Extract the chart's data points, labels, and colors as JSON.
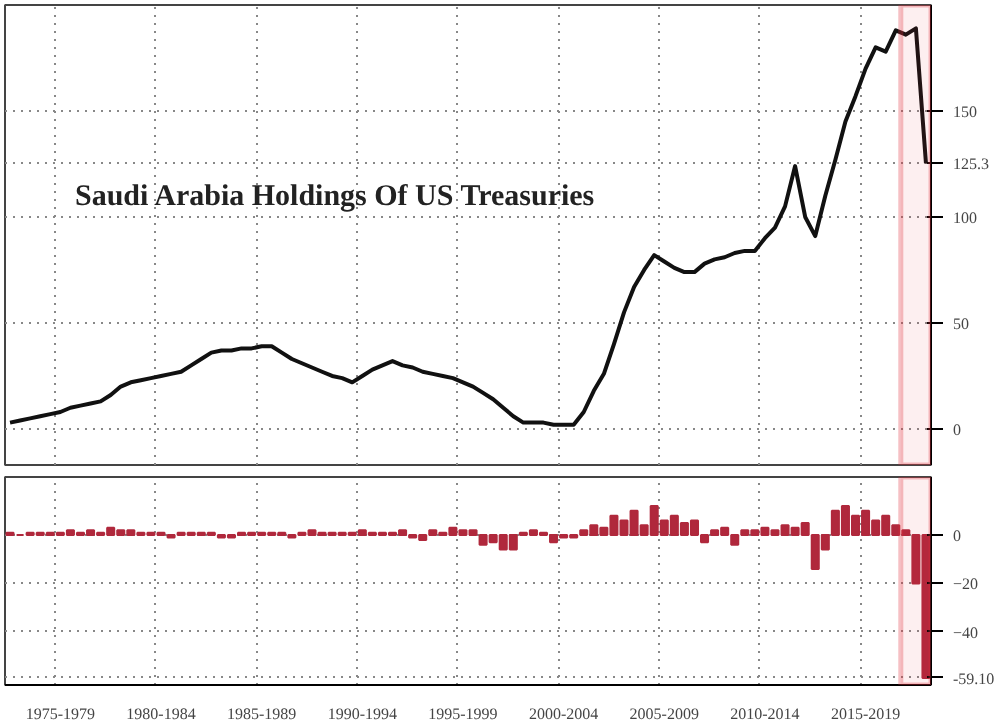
{
  "chart_data": [
    {
      "type": "line",
      "title": "Saudi Arabia Holdings Of US Treasuries",
      "categories": [
        null,
        null,
        null,
        null,
        null,
        null,
        null,
        null,
        null,
        null,
        null,
        null,
        null,
        null,
        null,
        null,
        null,
        null,
        null,
        null,
        null,
        null,
        null,
        null,
        null,
        null,
        null,
        null,
        null,
        null,
        null,
        null,
        null,
        null,
        null,
        null,
        null,
        null,
        null,
        null,
        null,
        null,
        null,
        null,
        null,
        null,
        null,
        null,
        null,
        null,
        null,
        null,
        null,
        null,
        null,
        null,
        null,
        null,
        null,
        null,
        null,
        null,
        null,
        null,
        null,
        null,
        null,
        null,
        null,
        null,
        null,
        null,
        null,
        null,
        null,
        null,
        null,
        null,
        null,
        null,
        null,
        null,
        null,
        null,
        null,
        null,
        null,
        null,
        null,
        null,
        null,
        null
      ],
      "series": [
        {
          "color": "#111111",
          "values": [
            3,
            4,
            5,
            6,
            7,
            8,
            10,
            11,
            12,
            13,
            16,
            20,
            22,
            23,
            24,
            25,
            26,
            27,
            30,
            33,
            36,
            37,
            37,
            38,
            38,
            39,
            39,
            36,
            33,
            31,
            29,
            27,
            25,
            24,
            22,
            25,
            28,
            30,
            32,
            30,
            29,
            27,
            26,
            25,
            24,
            22,
            20,
            17,
            14,
            10,
            6,
            3,
            3,
            3,
            2,
            2,
            2,
            8,
            18,
            26,
            40,
            55,
            67,
            75,
            82,
            79,
            76,
            74,
            74,
            78,
            80,
            81,
            83,
            84,
            84,
            90,
            95,
            105,
            124,
            100,
            91,
            110,
            127,
            145,
            157,
            170,
            180,
            178,
            188,
            186,
            189,
            125.3
          ]
        }
      ],
      "ylim": [
        -17,
        200
      ],
      "yticks": [
        0,
        50,
        100,
        125.3,
        150
      ],
      "tick_labels": "y",
      "grid": true,
      "line_style": "solid"
    },
    {
      "type": "bar",
      "categories": [
        null,
        null,
        null,
        null,
        null,
        "1975-1979",
        null,
        null,
        null,
        null,
        null,
        null,
        null,
        null,
        null,
        "1980-1984",
        null,
        null,
        null,
        null,
        null,
        null,
        null,
        null,
        null,
        "1985-1989",
        null,
        null,
        null,
        null,
        null,
        null,
        null,
        null,
        null,
        "1990-1994",
        null,
        null,
        null,
        null,
        null,
        null,
        null,
        null,
        null,
        "1995-1999",
        null,
        null,
        null,
        null,
        null,
        null,
        null,
        null,
        null,
        "2000-2004",
        null,
        null,
        null,
        null,
        null,
        null,
        null,
        null,
        null,
        "2005-2009",
        null,
        null,
        null,
        null,
        null,
        null,
        null,
        null,
        null,
        "2010-2014",
        null,
        null,
        null,
        null,
        null,
        null,
        null,
        null,
        null,
        "2015-2019",
        null,
        null,
        null,
        null,
        null,
        null
      ],
      "series": [
        {
          "color": "#b0283c",
          "values": [
            1,
            0,
            1,
            1,
            1,
            1,
            2,
            1,
            2,
            1,
            3,
            2,
            2,
            1,
            1,
            1,
            -1,
            1,
            1,
            1,
            1,
            -1,
            -1,
            1,
            1,
            1,
            1,
            1,
            -1,
            1,
            2,
            1,
            1,
            1,
            1,
            2,
            1,
            1,
            1,
            2,
            -1,
            -2,
            2,
            1,
            3,
            2,
            2,
            -4,
            -3,
            -6,
            -6,
            1,
            2,
            1,
            -3,
            -1,
            -1,
            2,
            4,
            3,
            8,
            6,
            10,
            4,
            12,
            6,
            8,
            5,
            6,
            -3,
            2,
            3,
            -4,
            2,
            2,
            3,
            2,
            4,
            3,
            5,
            -14,
            -6,
            10,
            12,
            8,
            10,
            6,
            8,
            4,
            2,
            -20,
            -59.1
          ]
        }
      ],
      "ylim": [
        -62,
        24
      ],
      "yticks": [
        {
          "value": -59.1,
          "label": "-59.10"
        },
        -40,
        -20,
        0
      ],
      "grid": true
    }
  ]
}
